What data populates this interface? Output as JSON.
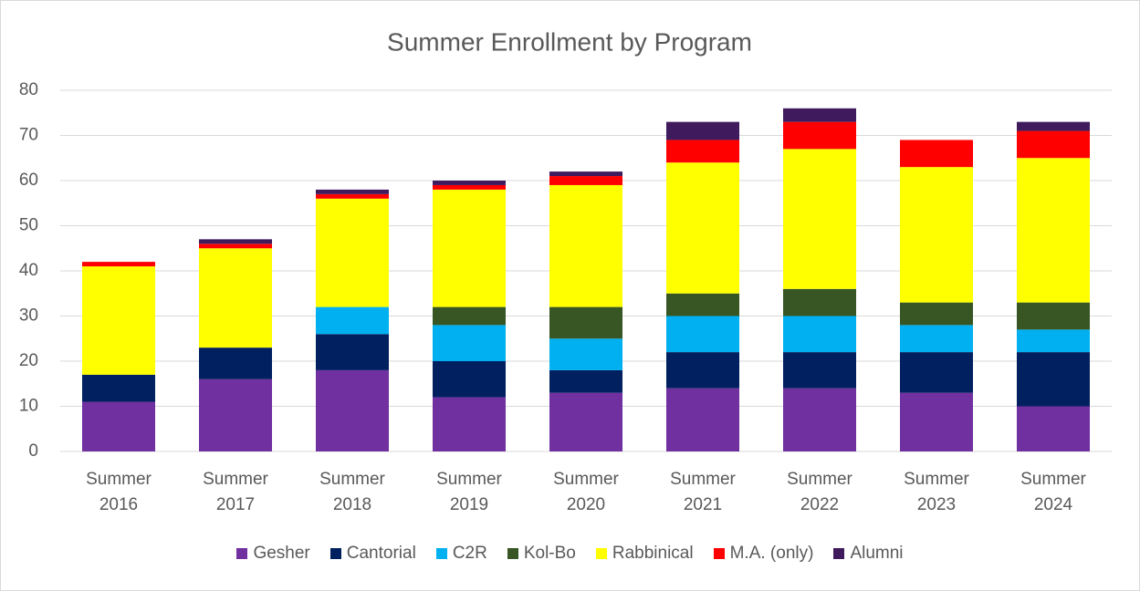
{
  "chart_data": {
    "type": "stacked_bar",
    "title": "Summer Enrollment by Program",
    "categories": [
      "Summer 2016",
      "Summer 2017",
      "Summer 2018",
      "Summer 2019",
      "Summer 2020",
      "Summer 2021",
      "Summer 2022",
      "Summer 2023",
      "Summer 2024"
    ],
    "series": [
      {
        "name": "Gesher",
        "color": "#7030a0",
        "values": [
          11,
          16,
          18,
          12,
          13,
          14,
          14,
          13,
          10
        ]
      },
      {
        "name": "Cantorial",
        "color": "#002060",
        "values": [
          6,
          7,
          8,
          8,
          5,
          8,
          8,
          9,
          12
        ]
      },
      {
        "name": "C2R",
        "color": "#00b0f0",
        "values": [
          0,
          0,
          6,
          8,
          7,
          8,
          8,
          6,
          5
        ]
      },
      {
        "name": "Kol-Bo",
        "color": "#375623",
        "values": [
          0,
          0,
          0,
          4,
          7,
          5,
          6,
          5,
          6
        ]
      },
      {
        "name": "Rabbinical",
        "color": "#ffff00",
        "values": [
          24,
          22,
          24,
          26,
          27,
          29,
          31,
          30,
          32
        ]
      },
      {
        "name": "M.A. (only)",
        "color": "#ff0000",
        "values": [
          1,
          1,
          1,
          1,
          2,
          5,
          6,
          6,
          6
        ]
      },
      {
        "name": "Alumni",
        "color": "#3f1b5e",
        "values": [
          0,
          1,
          1,
          1,
          1,
          4,
          3,
          0,
          2
        ]
      }
    ],
    "ylim": [
      0,
      80
    ],
    "yticks": [
      0,
      10,
      20,
      30,
      40,
      50,
      60,
      70,
      80
    ],
    "grid": true,
    "legend": "bottom"
  }
}
